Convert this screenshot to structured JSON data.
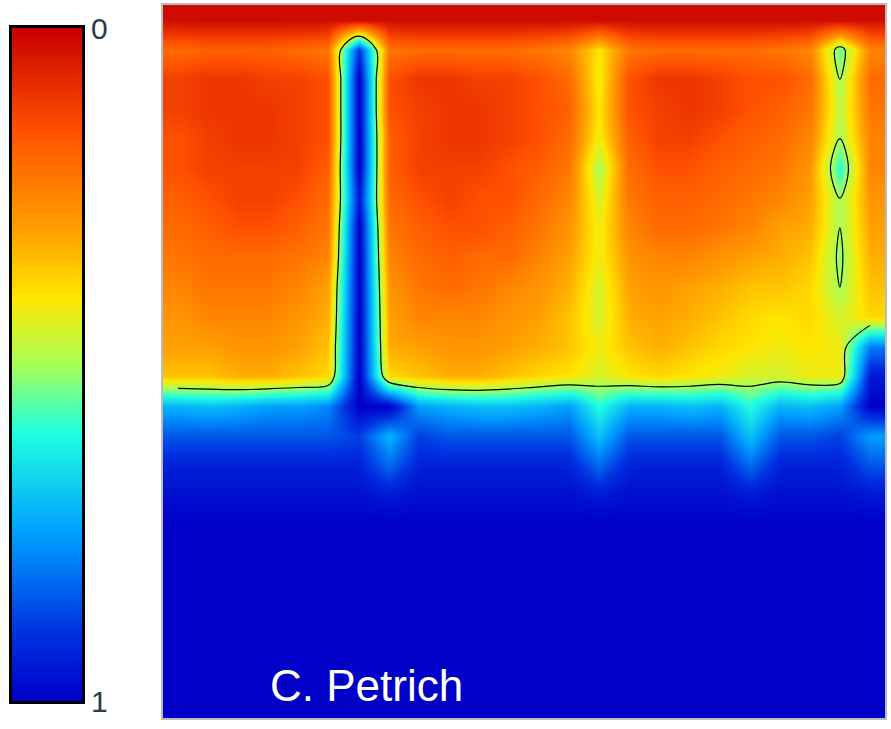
{
  "chart_data": {
    "type": "heatmap",
    "annotation": "C. Petrich",
    "tick_labels": false,
    "color_range": [
      0,
      1
    ],
    "color_ticks": [
      0,
      1
    ],
    "contour_level": 0.5,
    "cells": [
      [
        0.02,
        0.02,
        0.02,
        0.02,
        0.02,
        0.02,
        0.02,
        0.02,
        0.02,
        0.02,
        0.02,
        0.02,
        0.02,
        0.02,
        0.02,
        0.02,
        0.02,
        0.02,
        0.02,
        0.02,
        0.02,
        0.02,
        0.02,
        0.02
      ],
      [
        0.2,
        0.18,
        0.18,
        0.18,
        0.2,
        0.22,
        0.9,
        0.22,
        0.2,
        0.2,
        0.2,
        0.2,
        0.22,
        0.25,
        0.4,
        0.22,
        0.2,
        0.2,
        0.2,
        0.2,
        0.22,
        0.25,
        0.55,
        0.25
      ],
      [
        0.12,
        0.1,
        0.1,
        0.12,
        0.12,
        0.15,
        1,
        0.15,
        0.1,
        0.1,
        0.12,
        0.12,
        0.15,
        0.2,
        0.42,
        0.15,
        0.1,
        0.1,
        0.12,
        0.15,
        0.15,
        0.2,
        0.5,
        0.2
      ],
      [
        0.12,
        0.1,
        0.1,
        0.1,
        0.12,
        0.15,
        1,
        0.15,
        0.12,
        0.1,
        0.1,
        0.12,
        0.15,
        0.18,
        0.4,
        0.15,
        0.12,
        0.1,
        0.12,
        0.15,
        0.18,
        0.22,
        0.48,
        0.22
      ],
      [
        0.15,
        0.12,
        0.1,
        0.1,
        0.12,
        0.15,
        1,
        0.18,
        0.12,
        0.1,
        0.1,
        0.12,
        0.15,
        0.2,
        0.42,
        0.18,
        0.12,
        0.12,
        0.15,
        0.18,
        0.2,
        0.25,
        0.5,
        0.25
      ],
      [
        0.15,
        0.12,
        0.12,
        0.12,
        0.12,
        0.18,
        1,
        0.18,
        0.12,
        0.12,
        0.12,
        0.15,
        0.18,
        0.22,
        0.5,
        0.2,
        0.15,
        0.15,
        0.18,
        0.2,
        0.22,
        0.28,
        0.6,
        0.25
      ],
      [
        0.18,
        0.15,
        0.12,
        0.12,
        0.15,
        0.2,
        0.95,
        0.2,
        0.15,
        0.12,
        0.15,
        0.15,
        0.2,
        0.25,
        0.45,
        0.22,
        0.18,
        0.18,
        0.2,
        0.22,
        0.25,
        0.3,
        0.5,
        0.28
      ],
      [
        0.2,
        0.18,
        0.15,
        0.15,
        0.18,
        0.22,
        1,
        0.22,
        0.18,
        0.15,
        0.15,
        0.18,
        0.22,
        0.28,
        0.42,
        0.25,
        0.2,
        0.2,
        0.22,
        0.25,
        0.3,
        0.32,
        0.5,
        0.3
      ],
      [
        0.22,
        0.2,
        0.2,
        0.2,
        0.22,
        0.25,
        1,
        0.25,
        0.2,
        0.18,
        0.2,
        0.2,
        0.25,
        0.3,
        0.42,
        0.28,
        0.25,
        0.25,
        0.28,
        0.3,
        0.32,
        0.35,
        0.52,
        0.32
      ],
      [
        0.25,
        0.22,
        0.22,
        0.22,
        0.25,
        0.3,
        1,
        0.28,
        0.22,
        0.2,
        0.22,
        0.25,
        0.28,
        0.32,
        0.45,
        0.3,
        0.28,
        0.3,
        0.32,
        0.35,
        0.35,
        0.38,
        0.5,
        0.35
      ],
      [
        0.28,
        0.25,
        0.25,
        0.25,
        0.28,
        0.32,
        1,
        0.3,
        0.25,
        0.25,
        0.25,
        0.28,
        0.3,
        0.35,
        0.45,
        0.32,
        0.3,
        0.32,
        0.35,
        0.38,
        0.4,
        0.38,
        0.45,
        0.38
      ],
      [
        0.3,
        0.3,
        0.28,
        0.28,
        0.3,
        0.35,
        1,
        0.32,
        0.3,
        0.28,
        0.28,
        0.3,
        0.32,
        0.35,
        0.42,
        0.35,
        0.32,
        0.35,
        0.38,
        0.4,
        0.42,
        0.4,
        0.42,
        0.8
      ],
      [
        0.35,
        0.35,
        0.32,
        0.32,
        0.35,
        0.38,
        1,
        0.38,
        0.35,
        0.32,
        0.32,
        0.35,
        0.38,
        0.4,
        0.45,
        0.4,
        0.38,
        0.4,
        0.42,
        0.45,
        0.45,
        0.42,
        0.42,
        0.95
      ],
      [
        0.72,
        0.7,
        0.72,
        0.75,
        0.75,
        0.78,
        1,
        1,
        0.75,
        0.72,
        0.7,
        0.7,
        0.72,
        0.75,
        0.6,
        0.72,
        0.72,
        0.7,
        0.72,
        0.6,
        0.72,
        0.7,
        0.75,
        1
      ],
      [
        0.85,
        0.85,
        0.85,
        0.85,
        0.85,
        0.85,
        0.88,
        0.72,
        0.88,
        0.85,
        0.85,
        0.85,
        0.85,
        0.85,
        0.7,
        0.85,
        0.85,
        0.85,
        0.85,
        0.7,
        0.85,
        0.85,
        0.88,
        0.75
      ],
      [
        0.93,
        0.93,
        0.93,
        0.93,
        0.93,
        0.93,
        0.93,
        0.82,
        0.93,
        0.93,
        0.93,
        0.93,
        0.93,
        0.93,
        0.82,
        0.93,
        0.93,
        0.93,
        0.93,
        0.82,
        0.93,
        0.93,
        0.93,
        0.85
      ],
      [
        0.97,
        0.97,
        0.97,
        0.97,
        0.97,
        0.97,
        0.97,
        0.95,
        0.97,
        0.97,
        0.97,
        0.97,
        0.97,
        0.97,
        0.95,
        0.97,
        0.97,
        0.97,
        0.97,
        0.95,
        0.97,
        0.97,
        0.97,
        0.95
      ],
      [
        1,
        1,
        1,
        1,
        1,
        1,
        1,
        1,
        1,
        1,
        1,
        1,
        1,
        1,
        1,
        1,
        1,
        1,
        1,
        1,
        1,
        1,
        1,
        1
      ],
      [
        1,
        1,
        1,
        1,
        1,
        1,
        1,
        1,
        1,
        1,
        1,
        1,
        1,
        1,
        1,
        1,
        1,
        1,
        1,
        1,
        1,
        1,
        1,
        1
      ],
      [
        1,
        1,
        1,
        1,
        1,
        1,
        1,
        1,
        1,
        1,
        1,
        1,
        1,
        1,
        1,
        1,
        1,
        1,
        1,
        1,
        1,
        1,
        1,
        1
      ],
      [
        1,
        1,
        1,
        1,
        1,
        1,
        1,
        1,
        1,
        1,
        1,
        1,
        1,
        1,
        1,
        1,
        1,
        1,
        1,
        1,
        1,
        1,
        1,
        1
      ],
      [
        1,
        1,
        1,
        1,
        1,
        1,
        1,
        1,
        1,
        1,
        1,
        1,
        1,
        1,
        1,
        1,
        1,
        1,
        1,
        1,
        1,
        1,
        1,
        1
      ],
      [
        1,
        1,
        1,
        1,
        1,
        1,
        1,
        1,
        1,
        1,
        1,
        1,
        1,
        1,
        1,
        1,
        1,
        1,
        1,
        1,
        1,
        1,
        1,
        1
      ],
      [
        1,
        1,
        1,
        1,
        1,
        1,
        1,
        1,
        1,
        1,
        1,
        1,
        1,
        1,
        1,
        1,
        1,
        1,
        1,
        1,
        1,
        1,
        1,
        1
      ]
    ]
  }
}
